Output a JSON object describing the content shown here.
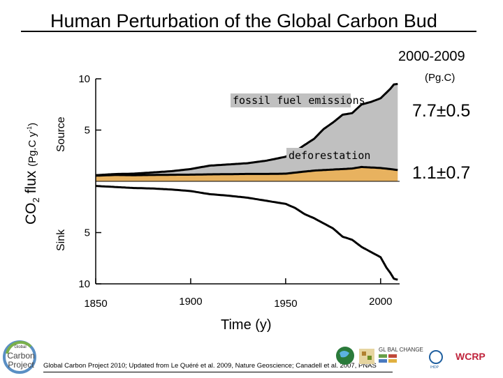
{
  "title": "Human Perturbation of the Global Carbon Bud",
  "period_label": "2000-2009",
  "unit_label": "(Pg.C)",
  "fossil_value": "7.7±0.5",
  "deforestation_value": "1.1±0.7",
  "y_axis_label": {
    "main": "CO",
    "sub": "2",
    "rest": " flux ",
    "unit_pre": "(Pg.C y",
    "unit_sup": "-1",
    "unit_post": ")"
  },
  "source_label": "Source",
  "sink_label": "Sink",
  "x_axis_label": "Time (y)",
  "footer_text": "Global Carbon Project 2010; Updated from Le Quéré et al. 2009, Nature Geoscience; Canadell et al. 2007, PNAS",
  "logos": {
    "gcp_top": "Global",
    "gcp_main1": "Carbon",
    "gcp_main2": "Project",
    "global_change": "GL BAL CHANGE",
    "wcrp": "WCRP",
    "ihdp": "IHDP"
  },
  "chart_data": {
    "type": "area",
    "title": "Human Perturbation of the Global Carbon Bud",
    "xlabel": "Time (y)",
    "ylabel": "CO2 flux (Pg.C y-1)",
    "xlim": [
      1850,
      2010
    ],
    "ylim": [
      -10,
      10
    ],
    "x_ticks": [
      1850,
      1900,
      1950,
      2000
    ],
    "y_ticks": [
      {
        "value": 10,
        "label": "10"
      },
      {
        "value": 5,
        "label": "5"
      },
      {
        "value": -5,
        "label": "5"
      },
      {
        "value": -10,
        "label": "10"
      }
    ],
    "annotations": [
      "fossil fuel emissions",
      "deforestation"
    ],
    "series": [
      {
        "name": "deforestation",
        "color": "#e8b25f",
        "x": [
          1850,
          1860,
          1870,
          1880,
          1890,
          1900,
          1910,
          1920,
          1930,
          1940,
          1950,
          1960,
          1965,
          1970,
          1975,
          1980,
          1985,
          1990,
          1995,
          2000,
          2005,
          2009
        ],
        "values": [
          0.55,
          0.62,
          0.6,
          0.62,
          0.64,
          0.65,
          0.68,
          0.7,
          0.72,
          0.72,
          0.75,
          0.95,
          1.05,
          1.1,
          1.15,
          1.2,
          1.25,
          1.4,
          1.35,
          1.3,
          1.2,
          1.1
        ]
      },
      {
        "name": "fossil fuel emissions",
        "color": "#c0c0c0",
        "x": [
          1850,
          1860,
          1870,
          1880,
          1890,
          1900,
          1910,
          1920,
          1930,
          1940,
          1950,
          1955,
          1960,
          1965,
          1970,
          1975,
          1980,
          1985,
          1990,
          1995,
          2000,
          2005,
          2007,
          2009
        ],
        "values": [
          0.05,
          0.09,
          0.15,
          0.25,
          0.35,
          0.55,
          0.85,
          0.95,
          1.05,
          1.3,
          1.65,
          2.05,
          2.6,
          3.1,
          4.0,
          4.6,
          5.3,
          5.4,
          6.1,
          6.4,
          6.8,
          7.8,
          8.3,
          8.4
        ]
      },
      {
        "name": "sink",
        "color": "#000000",
        "x": [
          1850,
          1860,
          1870,
          1880,
          1890,
          1900,
          1910,
          1920,
          1930,
          1940,
          1950,
          1955,
          1960,
          1965,
          1970,
          1975,
          1980,
          1985,
          1990,
          1995,
          2000,
          2003,
          2005,
          2007,
          2009
        ],
        "values": [
          -0.45,
          -0.55,
          -0.65,
          -0.7,
          -0.8,
          -0.95,
          -1.25,
          -1.4,
          -1.6,
          -1.9,
          -2.2,
          -2.6,
          -3.2,
          -3.6,
          -4.1,
          -4.6,
          -5.4,
          -5.7,
          -6.4,
          -6.9,
          -7.4,
          -8.4,
          -8.9,
          -9.5,
          -9.6
        ]
      }
    ]
  }
}
